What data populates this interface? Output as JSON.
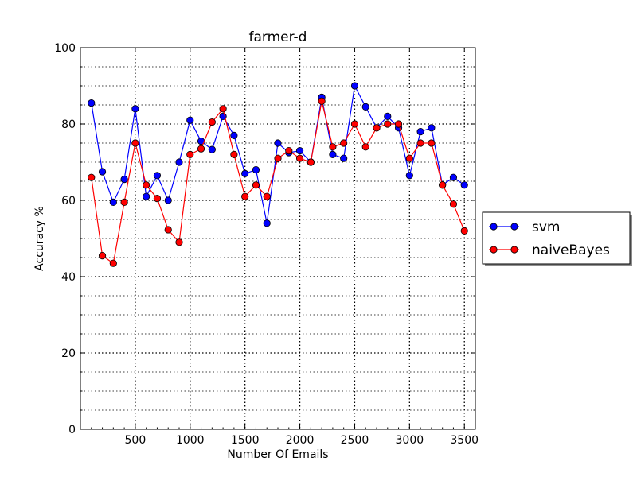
{
  "chart_data": {
    "type": "line",
    "title": "farmer-d",
    "xlabel": "Number Of Emails",
    "ylabel": "Accuracy %",
    "xlim": [
      0,
      3600
    ],
    "ylim": [
      0,
      100
    ],
    "xticks": [
      500,
      1000,
      1500,
      2000,
      2500,
      3000,
      3500
    ],
    "yticks": [
      0,
      20,
      40,
      60,
      80,
      100
    ],
    "grid": true,
    "legend_position": "right",
    "x": [
      100,
      200,
      300,
      400,
      500,
      600,
      700,
      800,
      900,
      1000,
      1100,
      1200,
      1300,
      1400,
      1500,
      1600,
      1700,
      1800,
      1900,
      2000,
      2100,
      2200,
      2300,
      2400,
      2500,
      2600,
      2700,
      2800,
      2900,
      3000,
      3100,
      3200,
      3300,
      3400,
      3500
    ],
    "series": [
      {
        "name": "svm",
        "color": "#0000ff",
        "values": [
          85.5,
          67.5,
          59.5,
          65.5,
          84,
          61,
          66.5,
          60,
          70,
          81,
          75.5,
          73.3,
          82,
          77,
          67,
          68,
          54,
          75,
          72.5,
          73,
          70,
          87,
          72,
          71,
          90,
          84.5,
          79,
          82,
          79,
          66.5,
          78,
          79,
          64,
          66,
          64
        ]
      },
      {
        "name": "naiveBayes",
        "color": "#ff0000",
        "values": [
          66,
          45.5,
          43.5,
          59.5,
          75,
          64,
          60.5,
          52.3,
          49,
          72,
          73.5,
          80.5,
          84,
          72,
          61,
          64,
          61,
          71,
          73,
          71,
          70,
          86,
          74,
          75,
          80,
          74,
          79,
          80,
          80,
          71,
          75,
          75,
          64,
          59,
          52
        ]
      }
    ]
  }
}
